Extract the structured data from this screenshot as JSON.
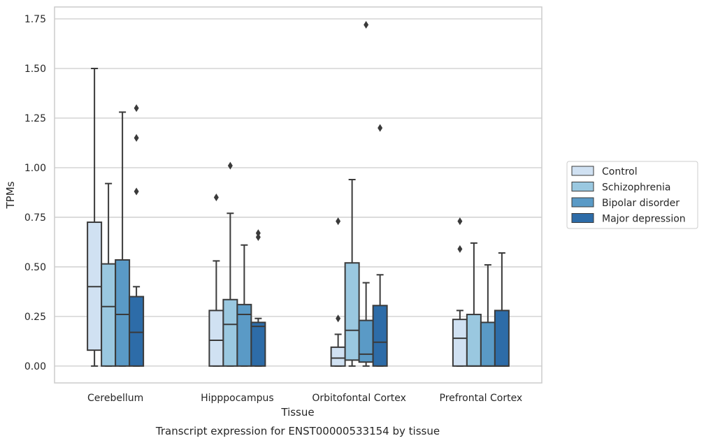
{
  "chart_data": {
    "type": "box",
    "categories": [
      "Cerebellum",
      "Hipppocampus",
      "Orbitofontal Cortex",
      "Prefrontal Cortex"
    ],
    "xlabel": "Tissue",
    "ylabel": "TPMs",
    "caption": "Transcript expression for ENST00000533154 by tissue",
    "ylim": [
      -0.085,
      1.81
    ],
    "yticks": [
      0.0,
      0.25,
      0.5,
      0.75,
      1.0,
      1.25,
      1.5,
      1.75
    ],
    "ytick_labels": [
      "0.00",
      "0.25",
      "0.50",
      "0.75",
      "1.00",
      "1.25",
      "1.50",
      "1.75"
    ],
    "grid": "horizontal",
    "legend_position": "right-outside",
    "series": [
      {
        "name": "Control",
        "color": "#d0e1f2",
        "boxes": [
          {
            "whislo": 0.0,
            "q1": 0.08,
            "med": 0.4,
            "q3": 0.725,
            "whishi": 1.5,
            "fliers": []
          },
          {
            "whislo": 0.0,
            "q1": 0.0,
            "med": 0.13,
            "q3": 0.28,
            "whishi": 0.53,
            "fliers": [
              0.85
            ]
          },
          {
            "whislo": 0.0,
            "q1": 0.0,
            "med": 0.04,
            "q3": 0.095,
            "whishi": 0.16,
            "fliers": [
              0.24,
              0.73
            ]
          },
          {
            "whislo": 0.0,
            "q1": 0.0,
            "med": 0.14,
            "q3": 0.235,
            "whishi": 0.28,
            "fliers": [
              0.59,
              0.73
            ]
          }
        ]
      },
      {
        "name": "Schizophrenia",
        "color": "#9ac8e0",
        "boxes": [
          {
            "whislo": 0.0,
            "q1": 0.0,
            "med": 0.3,
            "q3": 0.515,
            "whishi": 0.92,
            "fliers": []
          },
          {
            "whislo": 0.0,
            "q1": 0.0,
            "med": 0.21,
            "q3": 0.335,
            "whishi": 0.77,
            "fliers": [
              1.01
            ]
          },
          {
            "whislo": 0.0,
            "q1": 0.03,
            "med": 0.18,
            "q3": 0.52,
            "whishi": 0.94,
            "fliers": []
          },
          {
            "whislo": 0.0,
            "q1": 0.0,
            "med": 0.0,
            "q3": 0.26,
            "whishi": 0.62,
            "fliers": []
          }
        ]
      },
      {
        "name": "Bipolar disorder",
        "color": "#5a9ac6",
        "boxes": [
          {
            "whislo": 0.0,
            "q1": 0.0,
            "med": 0.26,
            "q3": 0.535,
            "whishi": 1.28,
            "fliers": []
          },
          {
            "whislo": 0.0,
            "q1": 0.0,
            "med": 0.26,
            "q3": 0.31,
            "whishi": 0.61,
            "fliers": []
          },
          {
            "whislo": 0.0,
            "q1": 0.02,
            "med": 0.06,
            "q3": 0.23,
            "whishi": 0.42,
            "fliers": [
              1.72
            ]
          },
          {
            "whislo": 0.0,
            "q1": 0.0,
            "med": 0.0,
            "q3": 0.22,
            "whishi": 0.51,
            "fliers": []
          }
        ]
      },
      {
        "name": "Major depression",
        "color": "#2d6ca8",
        "boxes": [
          {
            "whislo": 0.0,
            "q1": 0.0,
            "med": 0.17,
            "q3": 0.35,
            "whishi": 0.4,
            "fliers": [
              0.88,
              1.15,
              1.3
            ]
          },
          {
            "whislo": 0.0,
            "q1": 0.0,
            "med": 0.2,
            "q3": 0.22,
            "whishi": 0.24,
            "fliers": [
              0.65,
              0.67
            ]
          },
          {
            "whislo": 0.0,
            "q1": 0.0,
            "med": 0.12,
            "q3": 0.305,
            "whishi": 0.46,
            "fliers": [
              1.2
            ]
          },
          {
            "whislo": 0.0,
            "q1": 0.0,
            "med": 0.0,
            "q3": 0.28,
            "whishi": 0.57,
            "fliers": []
          }
        ]
      }
    ]
  }
}
